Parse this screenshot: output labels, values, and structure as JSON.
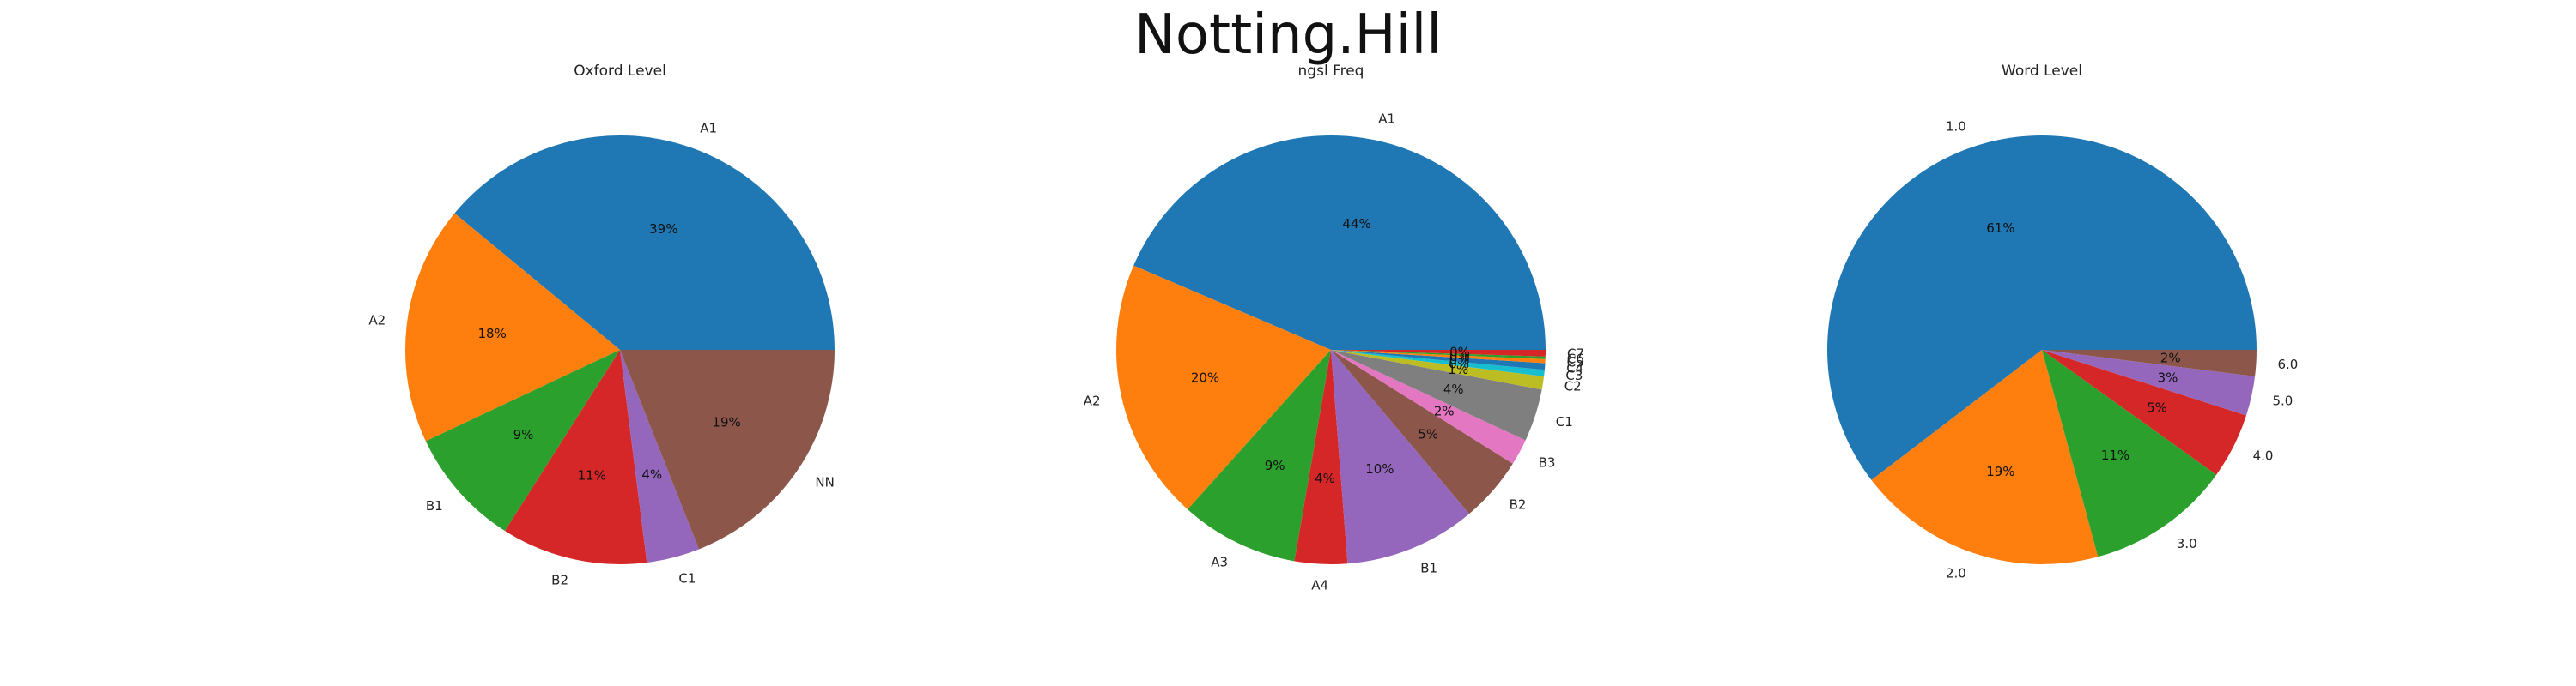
{
  "figure": {
    "title": "Notting.Hill"
  },
  "chart_data": [
    {
      "type": "pie",
      "title": "Oxford Level",
      "labels": [
        "A1",
        "A2",
        "B1",
        "B2",
        "C1",
        "NN"
      ],
      "values": [
        39,
        18,
        9,
        11,
        4,
        19
      ],
      "pct_labels": [
        "39%",
        "18%",
        "9%",
        "11%",
        "4%",
        "19%"
      ],
      "colors": [
        "#1f77b4",
        "#ff7f0e",
        "#2ca02c",
        "#d62728",
        "#9467bd",
        "#8c564b"
      ]
    },
    {
      "type": "pie",
      "title": "ngsl Freq",
      "labels": [
        "A1",
        "A2",
        "A3",
        "A4",
        "B1",
        "B2",
        "B3",
        "C1",
        "C2",
        "C3",
        "C4",
        "C5",
        "C6",
        "C7"
      ],
      "values": [
        44,
        20,
        9,
        4,
        10,
        5,
        2,
        4,
        1,
        0.5,
        0.5,
        0.3,
        0.2,
        0.5
      ],
      "pct_labels": [
        "44%",
        "20%",
        "9%",
        "4%",
        "10%",
        "5%",
        "2%",
        "4%",
        "1%",
        "0%",
        "0%",
        "0%",
        "0%",
        "0%"
      ],
      "colors": [
        "#1f77b4",
        "#ff7f0e",
        "#2ca02c",
        "#d62728",
        "#9467bd",
        "#8c564b",
        "#e377c2",
        "#7f7f7f",
        "#bcbd22",
        "#17becf",
        "#1f77b4",
        "#ff7f0e",
        "#2ca02c",
        "#d62728"
      ]
    },
    {
      "type": "pie",
      "title": "Word Level",
      "labels": [
        "1.0",
        "2.0",
        "3.0",
        "4.0",
        "5.0",
        "6.0"
      ],
      "values": [
        61,
        19,
        11,
        5,
        3,
        2
      ],
      "pct_labels": [
        "61%",
        "19%",
        "11%",
        "5%",
        "3%",
        "2%"
      ],
      "colors": [
        "#1f77b4",
        "#ff7f0e",
        "#2ca02c",
        "#d62728",
        "#9467bd",
        "#8c564b"
      ]
    }
  ]
}
